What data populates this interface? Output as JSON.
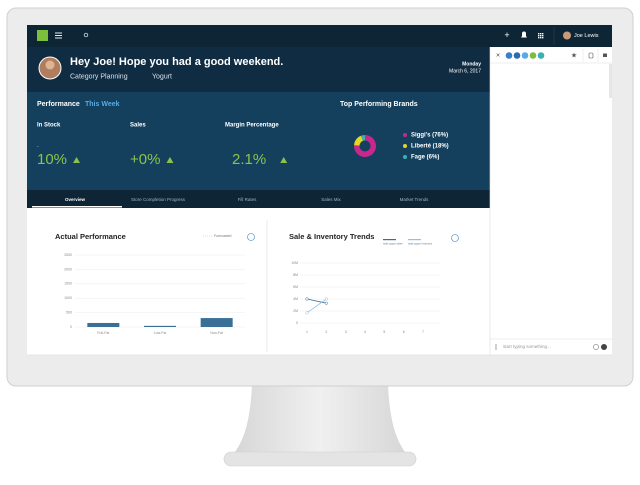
{
  "nav": {
    "user": "Joe Lewis"
  },
  "header": {
    "greeting": "Hey Joe! Hope you had a good weekend.",
    "category": "Category Planning",
    "subcategory": "Yogurt",
    "day": "Monday",
    "date": "March 6, 2017"
  },
  "performance": {
    "title": "Performance",
    "period": "This Week",
    "metrics": [
      {
        "label": "In Stock",
        "note": "-",
        "value": "10%"
      },
      {
        "label": "Sales",
        "value": "+0%"
      },
      {
        "label": "Margin Percentage",
        "value": "2.1%"
      }
    ]
  },
  "tabs": [
    "Overview",
    "Store Completion Progress",
    "Fill Rates",
    "Sales Mix",
    "Market Trends"
  ],
  "chart_data": [
    {
      "type": "pie",
      "title": "Top Performing Brands",
      "categories": [
        "Siggi's (76%)",
        "Liberté (18%)",
        "Fage (6%)"
      ],
      "values": [
        76,
        18,
        6
      ],
      "colors": [
        "#c8288e",
        "#e8d51e",
        "#3ab0b0"
      ]
    },
    {
      "type": "bar",
      "title": "Actual Performance",
      "legend": "Forecasted",
      "categories": [
        "Full-Fat",
        "Low-Fat",
        "Non-Fat"
      ],
      "values": [
        140,
        40,
        310
      ],
      "color": "#3a6f98",
      "ylim": [
        0,
        2500
      ],
      "yticks": [
        0,
        500,
        1000,
        1500,
        2000,
        2500
      ],
      "grid": true
    },
    {
      "type": "line",
      "title": "Sale & Inventory Trends",
      "x": [
        1,
        2
      ],
      "xlim": [
        1,
        7
      ],
      "xticks": [
        1,
        2,
        3,
        4,
        5,
        6,
        7
      ],
      "ylim": [
        0,
        10000000
      ],
      "yticks": [
        {
          "value": 0,
          "label": "0"
        },
        {
          "value": 2000000,
          "label": "2M"
        },
        {
          "value": 4000000,
          "label": "4M"
        },
        {
          "value": 6000000,
          "label": "6M"
        },
        {
          "value": 8000000,
          "label": "8M"
        },
        {
          "value": 10000000,
          "label": "10M"
        }
      ],
      "grid": true,
      "series": [
        {
          "name": "total yogurt sales",
          "color": "#3a6f98",
          "values": [
            4000000,
            3300000
          ]
        },
        {
          "name": "total yogurt inventory",
          "color": "#8fc1e3",
          "values": [
            1700000,
            4000000
          ]
        }
      ]
    }
  ],
  "chat": {
    "placeholder": "start typing something..."
  }
}
